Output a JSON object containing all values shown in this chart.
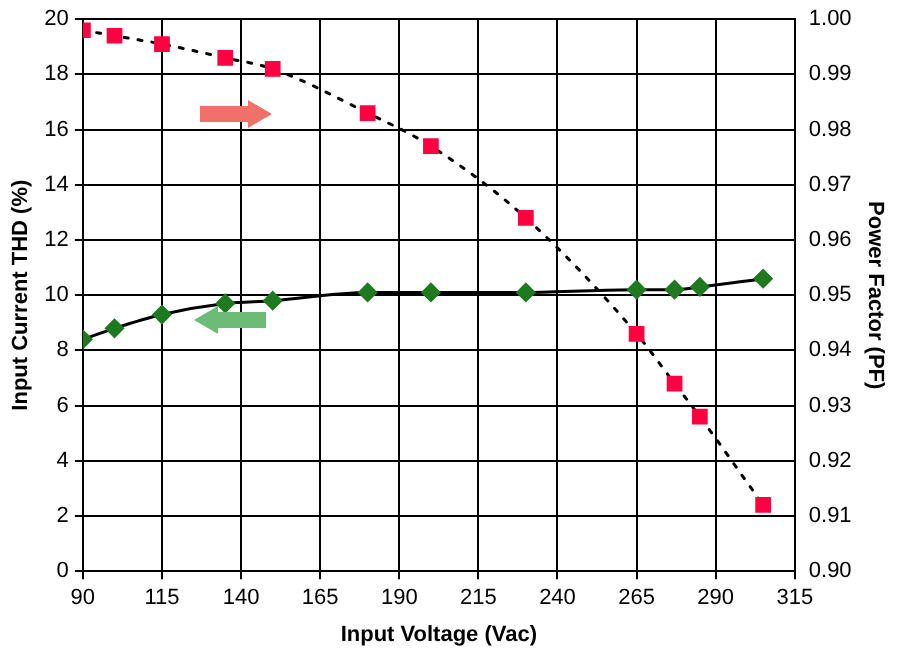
{
  "chart_data": {
    "type": "line",
    "xlabel": "Input Voltage (Vac)",
    "ylabel": "Input Current THD (%)",
    "y2label": "Power Factor (PF)",
    "x": [
      90,
      100,
      115,
      135,
      150,
      180,
      200,
      230,
      265,
      277,
      285,
      305
    ],
    "xlim": [
      90,
      315
    ],
    "xticks": [
      90,
      115,
      140,
      165,
      190,
      215,
      240,
      265,
      290,
      315
    ],
    "ylim": [
      0,
      20
    ],
    "yticks": [
      0,
      2,
      4,
      6,
      8,
      10,
      12,
      14,
      16,
      18,
      20
    ],
    "y2lim": [
      0.9,
      1.0
    ],
    "y2ticks": [
      {
        "value": 0.9,
        "label": "0.90"
      },
      0.91,
      0.92,
      0.93,
      0.94,
      0.95,
      0.96,
      0.97,
      0.98,
      0.99,
      {
        "value": 1.0,
        "label": "1.00"
      }
    ],
    "grid": true,
    "legend": false,
    "series": [
      {
        "color": "#ff0040",
        "marker": "square",
        "line_style": "dotted",
        "axis": "y2",
        "values": [
          0.998,
          0.997,
          0.9955,
          0.993,
          0.991,
          0.983,
          0.977,
          0.964,
          0.943,
          0.934,
          0.928,
          0.912
        ]
      },
      {
        "color": "#1f7a1f",
        "marker": "diamond",
        "line_style": "solid",
        "values": [
          8.4,
          8.8,
          9.3,
          9.7,
          9.8,
          10.1,
          10.1,
          10.1,
          10.2,
          10.2,
          10.3,
          10.6
        ]
      }
    ]
  }
}
